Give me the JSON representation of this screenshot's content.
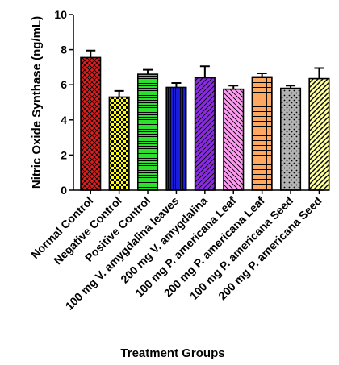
{
  "chart_data": {
    "type": "bar",
    "title": "",
    "xlabel": "Treatment Groups",
    "ylabel": "Nitric Oxide Synthase (ng/mL)",
    "ylim": [
      0,
      10
    ],
    "yticks": [
      "0",
      "2",
      "4",
      "6",
      "8",
      "10"
    ],
    "grid": false,
    "categories": [
      "Normal Control",
      "Negative Control",
      "Positive Control",
      "100 mg V. amygdalina leaves",
      "200 mg V. amygdalina",
      "100 mg P. americana Leaf",
      "200 mg P. americana Leaf",
      "100 mg P. americana Seed",
      "200 mg P. americana Seed"
    ],
    "values": [
      7.55,
      5.3,
      6.6,
      5.85,
      6.4,
      5.75,
      6.45,
      5.8,
      6.35
    ],
    "errors": [
      0.4,
      0.35,
      0.25,
      0.25,
      0.65,
      0.2,
      0.2,
      0.15,
      0.6
    ],
    "colors": [
      "#e02020",
      "#ffff00",
      "#2ee02e",
      "#1c1cdc",
      "#8a2be2",
      "#ff9cf2",
      "#ffa860",
      "#b4b4b4",
      "#ffffa0"
    ],
    "patterns": [
      "crosshatch",
      "checker",
      "horizontal-lines",
      "vertical-lines",
      "diagonal-right",
      "diagonal-left",
      "grid",
      "dots",
      "diagonal-thick"
    ]
  }
}
